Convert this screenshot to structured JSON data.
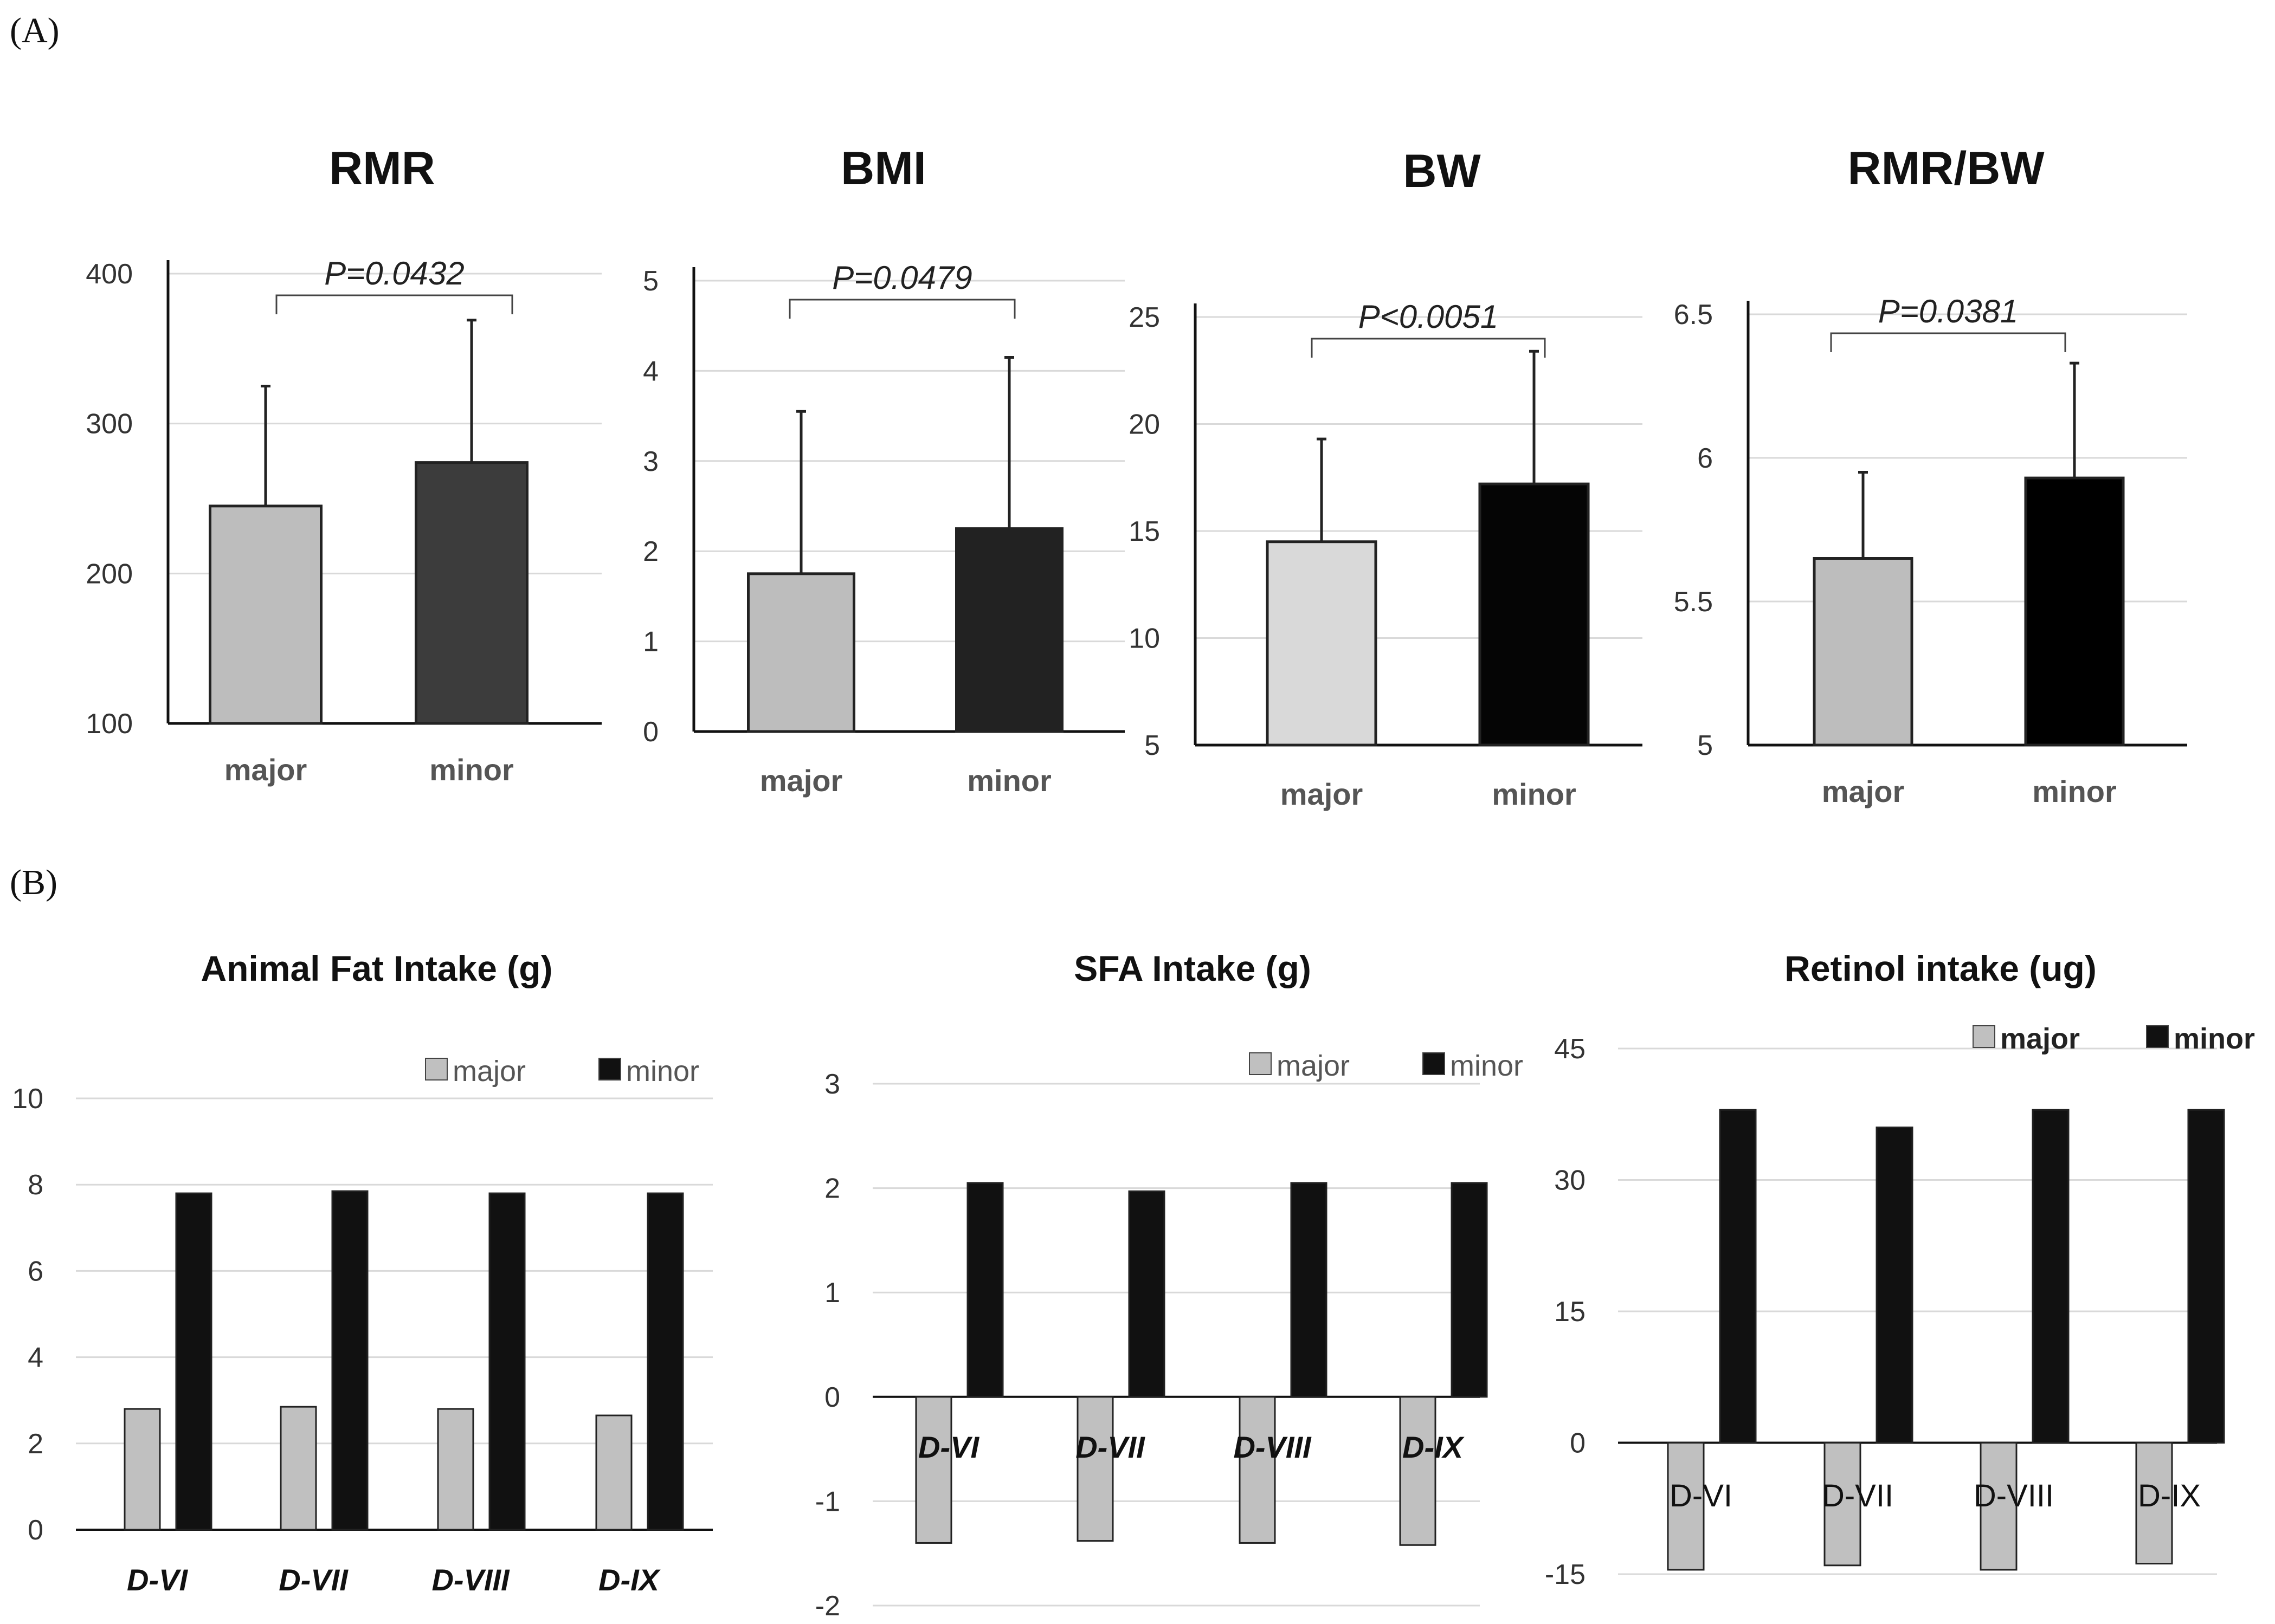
{
  "panel_labels": [
    "(A)",
    "(B)"
  ],
  "chart_data": [
    {
      "type": "bar",
      "title": "RMR",
      "categories": [
        "major",
        "minor"
      ],
      "series": [
        {
          "values": [
            245,
            274
          ],
          "errors": [
            80,
            95
          ]
        }
      ],
      "colors": [
        "#bdbdbd",
        "#3c3c3c"
      ],
      "ylim": [
        100,
        400
      ],
      "yticks": [
        "100",
        "200",
        "300",
        "400"
      ],
      "pvalue": "P=0.0432",
      "grid": true
    },
    {
      "type": "bar",
      "title": "BMI",
      "categories": [
        "major",
        "minor"
      ],
      "series": [
        {
          "values": [
            1.75,
            2.25
          ],
          "errors": [
            1.8,
            1.9
          ]
        }
      ],
      "colors": [
        "#bdbdbd",
        "#222222"
      ],
      "ylim": [
        0,
        5
      ],
      "yticks": [
        "0",
        "1",
        "2",
        "3",
        "4",
        "5"
      ],
      "pvalue": "P=0.0479",
      "grid": true
    },
    {
      "type": "bar",
      "title": "BW",
      "categories": [
        "major",
        "minor"
      ],
      "series": [
        {
          "values": [
            14.5,
            17.2
          ],
          "errors": [
            4.8,
            6.2
          ]
        }
      ],
      "colors": [
        "#d9d9d9",
        "#050505"
      ],
      "ylim": [
        5,
        25
      ],
      "yticks": [
        "5",
        "10",
        "15",
        "20",
        "25"
      ],
      "pvalue": "P<0.0051",
      "grid": true
    },
    {
      "type": "bar",
      "title": "RMR/BW",
      "categories": [
        "major",
        "minor"
      ],
      "series": [
        {
          "values": [
            5.65,
            5.93
          ],
          "errors": [
            0.3,
            0.4
          ]
        }
      ],
      "colors": [
        "#bdbdbd",
        "#000000"
      ],
      "ylim": [
        5,
        6.5
      ],
      "yticks": [
        "5",
        "5.5",
        "6",
        "6.5"
      ],
      "pvalue": "P=0.0381",
      "grid": true
    },
    {
      "type": "bar",
      "title": "Animal Fat Intake (g)",
      "categories": [
        "D-VI",
        "D-VII",
        "D-VIII",
        "D-IX"
      ],
      "series": [
        {
          "name": "major",
          "values": [
            2.8,
            2.85,
            2.8,
            2.65
          ]
        },
        {
          "name": "minor",
          "values": [
            7.8,
            7.85,
            7.8,
            7.8
          ]
        }
      ],
      "colors": [
        "#c0c0c0",
        "#111111"
      ],
      "ylim": [
        0,
        10
      ],
      "yticks": [
        "0",
        "2",
        "4",
        "6",
        "8",
        "10"
      ],
      "legend": "top-right",
      "grid": true
    },
    {
      "type": "bar",
      "title": "SFA Intake (g)",
      "categories": [
        "D-VI",
        "D-VII",
        "D-VIII",
        "D-IX"
      ],
      "series": [
        {
          "name": "major",
          "values": [
            -1.4,
            -1.38,
            -1.4,
            -1.42
          ]
        },
        {
          "name": "minor",
          "values": [
            2.05,
            1.97,
            2.05,
            2.05
          ]
        }
      ],
      "colors": [
        "#c0c0c0",
        "#111111"
      ],
      "ylim": [
        -2,
        3
      ],
      "yticks": [
        "-2",
        "-1",
        "0",
        "1",
        "2",
        "3"
      ],
      "legend": "top-right",
      "grid": true
    },
    {
      "type": "bar",
      "title": "Retinol intake (ug)",
      "categories": [
        "D-VI",
        "D-VII",
        "D-VIII",
        "D-IX"
      ],
      "series": [
        {
          "name": "major",
          "values": [
            -14.5,
            -14,
            -14.5,
            -13.8
          ]
        },
        {
          "name": "minor",
          "values": [
            38,
            36,
            38,
            38
          ]
        }
      ],
      "colors": [
        "#c0c0c0",
        "#111111"
      ],
      "ylim": [
        -15,
        45
      ],
      "yticks": [
        "-15",
        "0",
        "15",
        "30",
        "45"
      ],
      "legend": "top-right",
      "grid": true
    }
  ]
}
